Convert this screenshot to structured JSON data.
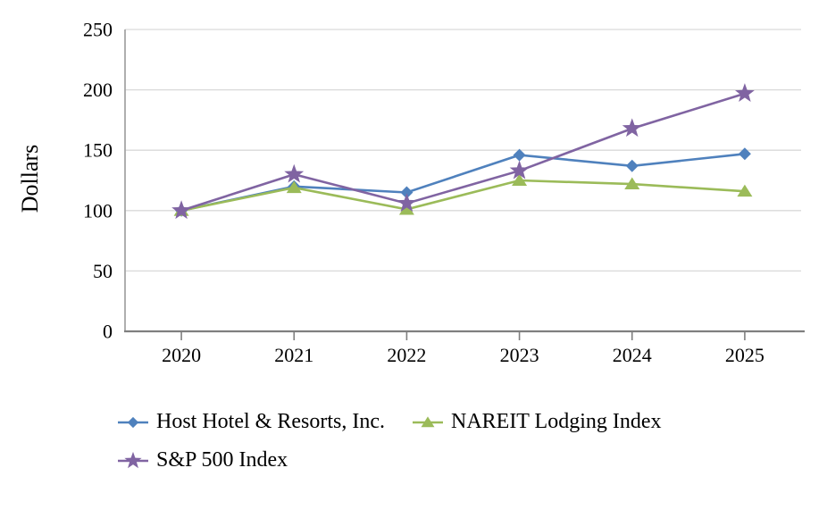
{
  "chart_data": {
    "type": "line",
    "ylabel": "Dollars",
    "xlabel": "",
    "ylim": [
      0,
      250
    ],
    "ytick_step": 50,
    "grid": true,
    "legend_position": "bottom-left",
    "categories": [
      "2020",
      "2021",
      "2022",
      "2023",
      "2024",
      "2025"
    ],
    "series": [
      {
        "name": "Host Hotel & Resorts, Inc.",
        "marker": "diamond",
        "color": "#4F81BD",
        "values": [
          100,
          120,
          115,
          146,
          137,
          147
        ]
      },
      {
        "name": "NAREIT Lodging Index",
        "marker": "triangle",
        "color": "#9BBB59",
        "values": [
          100,
          119,
          101,
          125,
          122,
          116
        ]
      },
      {
        "name": "S&P 500 Index",
        "marker": "star",
        "color": "#8064A2",
        "values": [
          100,
          130,
          106,
          133,
          168,
          197
        ]
      }
    ],
    "colors": {
      "gridline": "#D9D9D9",
      "y_axis": "#A6A6A6",
      "x_axis": "#7F7F7F",
      "text": "#000000"
    }
  }
}
